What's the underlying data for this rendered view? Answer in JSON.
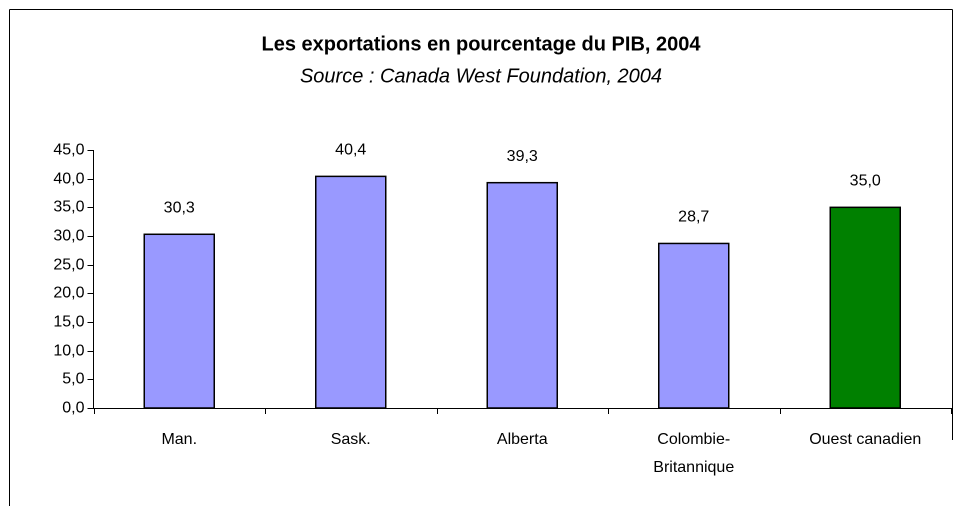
{
  "chart_data": {
    "type": "bar",
    "title": "Les exportations en pourcentage du PIB, 2004",
    "subtitle": "Source :  Canada West Foundation, 2004",
    "categories": [
      "Man.",
      "Sask.",
      "Alberta",
      "Colombie-\nBritannique",
      "Ouest canadien"
    ],
    "values": [
      30.3,
      40.4,
      39.3,
      28.7,
      35.0
    ],
    "value_labels": [
      "30,3",
      "40,4",
      "39,3",
      "28,7",
      "35,0"
    ],
    "colors": [
      "#9999ff",
      "#9999ff",
      "#9999ff",
      "#9999ff",
      "#008000"
    ],
    "ylim": [
      0,
      45
    ],
    "yticks": [
      {
        "value": 0,
        "label": "0,0"
      },
      {
        "value": 5,
        "label": "5,0"
      },
      {
        "value": 10,
        "label": "10,0"
      },
      {
        "value": 15,
        "label": "15,0"
      },
      {
        "value": 20,
        "label": "20,0"
      },
      {
        "value": 25,
        "label": "25,0"
      },
      {
        "value": 30,
        "label": "30,0"
      },
      {
        "value": 35,
        "label": "35,0"
      },
      {
        "value": 40,
        "label": "40,0"
      },
      {
        "value": 45,
        "label": "45,0"
      }
    ],
    "grid": false
  }
}
